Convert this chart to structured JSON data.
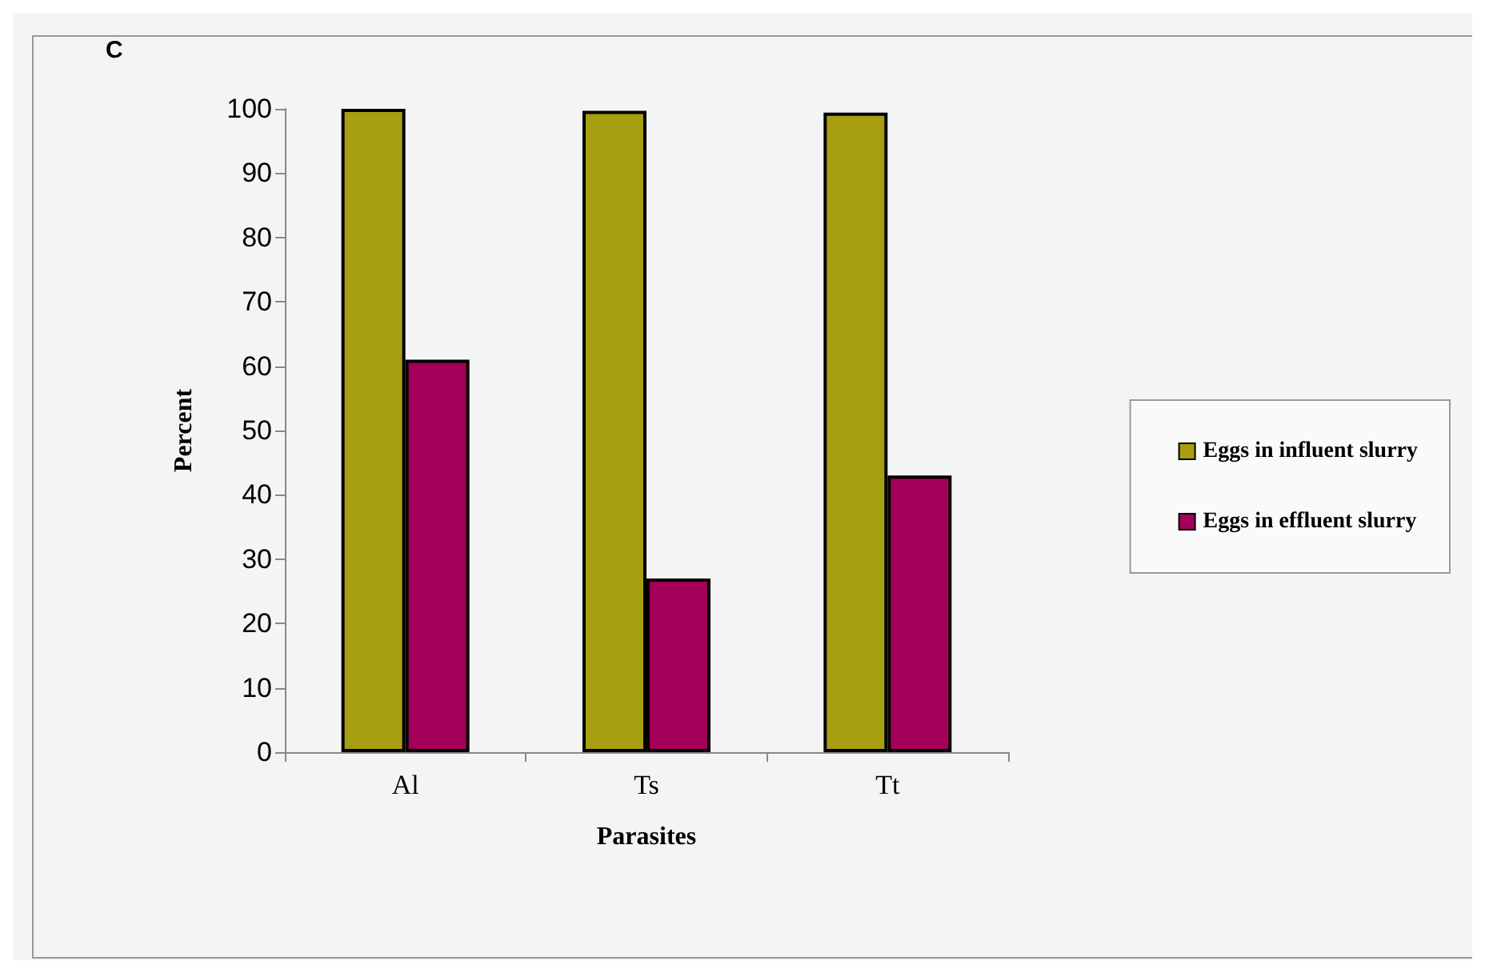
{
  "chart_data": {
    "type": "bar",
    "xlabel": "Parasites",
    "ylabel": "Percent",
    "annotations": [
      "C"
    ],
    "categories": [
      "Al",
      "Ts",
      "Tt"
    ],
    "series": [
      {
        "name": "Eggs in influent slurry",
        "color": "#a89e12",
        "values": [
          100,
          99.7,
          99.4
        ]
      },
      {
        "name": "Eggs in effluent slurry",
        "color": "#a3005a",
        "values": [
          61,
          27,
          43
        ]
      }
    ],
    "ylim": [
      0,
      100
    ],
    "yticks": [
      0,
      10,
      20,
      30,
      40,
      50,
      60,
      70,
      80,
      90,
      100
    ],
    "grid": false,
    "legend": "right"
  }
}
